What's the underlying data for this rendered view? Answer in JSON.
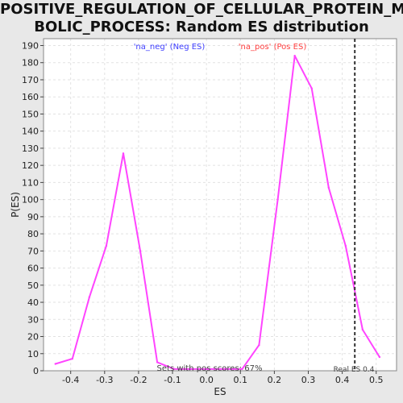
{
  "chart_data": {
    "type": "line",
    "title_lines": [
      "POSITIVE_REGULATION_OF_CELLULAR_PROTEIN_META",
      "BOLIC_PROCESS: Random ES distribution"
    ],
    "xlabel": "ES",
    "ylabel": "P(ES)",
    "xlim": [
      -0.48,
      0.56
    ],
    "ylim": [
      0,
      194
    ],
    "x_ticks": [
      -0.4,
      -0.3,
      -0.2,
      -0.1,
      0.0,
      0.1,
      0.2,
      0.3,
      0.4,
      0.5
    ],
    "x_tick_labels": [
      "-0.4",
      "-0.3",
      "-0.2",
      "-0.1",
      "0.0",
      "0.1",
      "0.2",
      "0.3",
      "0.4",
      "0.5"
    ],
    "y_ticks": [
      0,
      10,
      20,
      30,
      40,
      50,
      60,
      70,
      80,
      90,
      100,
      110,
      120,
      130,
      140,
      150,
      160,
      170,
      180,
      190
    ],
    "grid": true,
    "series": [
      {
        "color": "#ff44ff",
        "x": [
          -0.445,
          -0.395,
          -0.345,
          -0.295,
          -0.245,
          -0.195,
          -0.145,
          -0.095,
          -0.045,
          0.005,
          0.055,
          0.105,
          0.155,
          0.21,
          0.26,
          0.31,
          0.36,
          0.41,
          0.46,
          0.51
        ],
        "y": [
          4,
          7,
          43,
          73,
          127,
          70,
          5,
          1,
          1,
          1,
          1,
          1,
          15,
          100,
          184,
          165,
          107,
          73,
          24,
          8
        ]
      }
    ],
    "real_es": {
      "x": 0.437,
      "label": "Real ES 0.4",
      "color": "#333333"
    },
    "annotations": [
      {
        "text": "'na_neg' (Neg ES)",
        "color": "#4040ff"
      },
      {
        "text": "'na_pos' (Pos ES)",
        "color": "#ff4040"
      },
      {
        "text": "Sets with pos scores: 67%",
        "color": "#444444"
      }
    ]
  }
}
